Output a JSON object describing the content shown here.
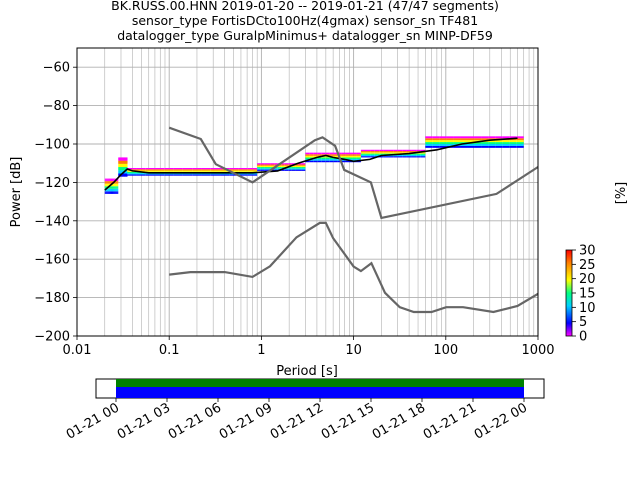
{
  "title_lines": [
    "BK.RUSS.00.HNN   2019-01-20 -- 2019-01-21  (47/47 segments)",
    "sensor_type FortisDCto100Hz(4gmax) sensor_sn TF481",
    "datalogger_type GuralpMinimus+ datalogger_sn MINP-DF59"
  ],
  "chart_data": {
    "type": "line",
    "title": "BK.RUSS.00.HNN   2019-01-20 -- 2019-01-21  (47/47 segments)",
    "xlabel": "Period [s]",
    "ylabel": "Power [dB]",
    "xscale": "log",
    "xlim": [
      0.01,
      1000
    ],
    "ylim": [
      -200,
      -50
    ],
    "grid": true,
    "x_tick_labels": [
      "0.01",
      "0.1",
      "1",
      "10",
      "100",
      "1000"
    ],
    "y_ticks": [
      -200,
      -180,
      -160,
      -140,
      -120,
      -100,
      -80,
      -60
    ],
    "series": [
      {
        "role": "mean",
        "color": "#000000",
        "x": [
          0.02,
          0.025,
          0.03,
          0.035,
          0.04,
          0.06,
          0.1,
          0.2,
          0.4,
          0.8,
          1.5,
          2.5,
          4,
          5,
          6,
          8,
          10,
          15,
          20,
          40,
          80,
          150,
          300,
          600
        ],
        "y": [
          -124,
          -120,
          -116,
          -113,
          -114,
          -115,
          -115,
          -115,
          -115,
          -115,
          -114,
          -110,
          -107,
          -106,
          -107,
          -108,
          -109,
          -108,
          -106,
          -105,
          -103,
          -100,
          -98,
          -97
        ]
      },
      {
        "role": "high-noise-model",
        "color": "#666666",
        "x": [
          0.1,
          0.22,
          0.32,
          0.8,
          3.8,
          4.6,
          6.3,
          7.9,
          15.4,
          20,
          354.8,
          1000
        ],
        "y": [
          -91.5,
          -97.4,
          -110.5,
          -120,
          -98,
          -96.5,
          -101,
          -113.5,
          -120,
          -138.5,
          -126,
          -112
        ]
      },
      {
        "role": "low-noise-model",
        "color": "#666666",
        "x": [
          0.1,
          0.17,
          0.4,
          0.8,
          1.24,
          2.4,
          4.3,
          5,
          6,
          10,
          12,
          15.6,
          21.9,
          31.6,
          45,
          70,
          101,
          154,
          328,
          600,
          1000
        ],
        "y": [
          -168,
          -166.7,
          -166.7,
          -169.2,
          -163.7,
          -148.6,
          -141.1,
          -141.1,
          -149,
          -163.8,
          -166.2,
          -162.1,
          -177.5,
          -185,
          -187.5,
          -187.5,
          -185,
          -185,
          -187.5,
          -184.4,
          -178
        ]
      }
    ],
    "histogram_bands": [
      {
        "x_from": 0.02,
        "x_to": 0.028,
        "y_center": -122,
        "spread": 4
      },
      {
        "x_from": 0.028,
        "x_to": 0.035,
        "y_center": -112,
        "spread": 5
      },
      {
        "x_from": 0.035,
        "x_to": 0.9,
        "y_center": -114.5,
        "spread": 2
      },
      {
        "x_from": 0.9,
        "x_to": 3,
        "y_center": -112,
        "spread": 2
      },
      {
        "x_from": 3,
        "x_to": 12,
        "y_center": -107,
        "spread": 2.5
      },
      {
        "x_from": 12,
        "x_to": 60,
        "y_center": -105,
        "spread": 2
      },
      {
        "x_from": 60,
        "x_to": 700,
        "y_center": -99,
        "spread": 3
      }
    ],
    "colorbar": {
      "label": "[%]",
      "range": [
        0,
        30
      ],
      "ticks": [
        "0",
        "5",
        "10",
        "15",
        "20",
        "25",
        "30"
      ]
    },
    "timeline": {
      "tick_labels": [
        "01-21 00",
        "01-21 03",
        "01-21 06",
        "01-21 09",
        "01-21 12",
        "01-21 15",
        "01-21 18",
        "01-21 21",
        "01-22 00"
      ],
      "colors": {
        "top": "#008000",
        "bottom": "#0000ff"
      }
    }
  }
}
